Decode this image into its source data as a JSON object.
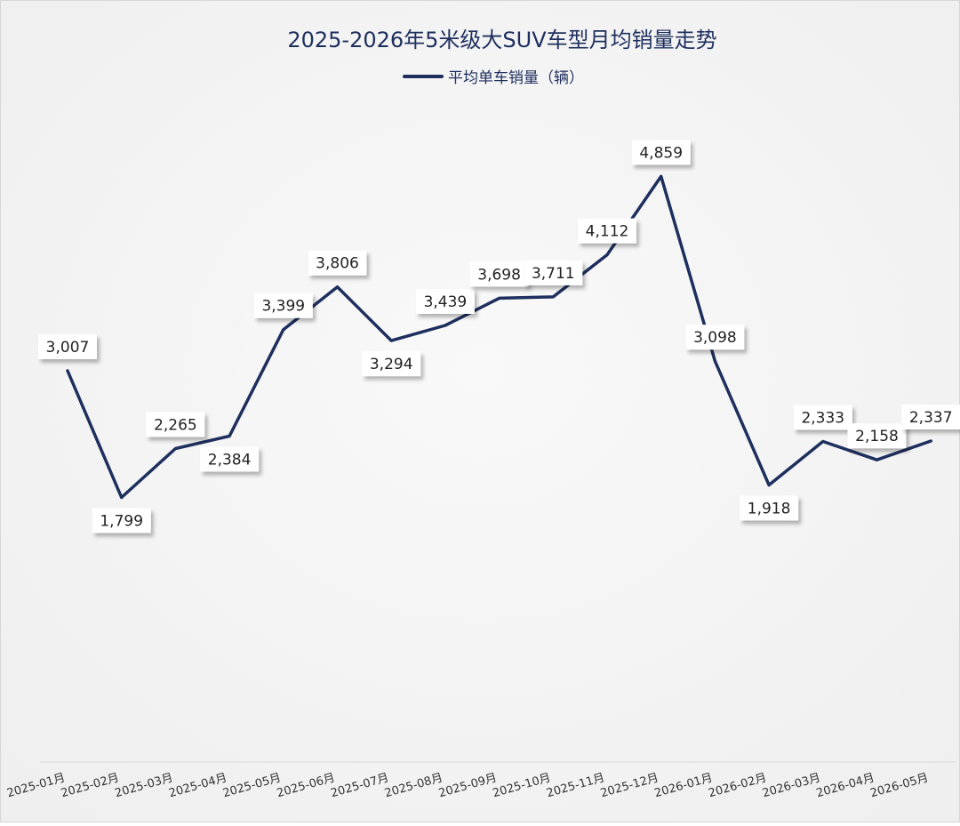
{
  "chart_data": {
    "type": "line",
    "title": "2025-2026年5米级大SUV车型月均销量走势",
    "legend": {
      "position": "top-center"
    },
    "grid": false,
    "categories": [
      "2025-01月",
      "2025-02月",
      "2025-03月",
      "2025-04月",
      "2025-05月",
      "2025-06月",
      "2025-07月",
      "2025-08月",
      "2025-09月",
      "2025-10月",
      "2025-11月",
      "2025-12月",
      "2026-01月",
      "2026-02月",
      "2026-03月",
      "2026-04月",
      "2026-05月"
    ],
    "series": [
      {
        "name": "平均单车销量（辆）",
        "color": "#1e2f5e",
        "values": [
          3007,
          1799,
          2265,
          2384,
          3399,
          3806,
          3294,
          3439,
          3698,
          3711,
          4112,
          4859,
          3098,
          1918,
          2333,
          2158,
          2337
        ],
        "labels": [
          "3,007",
          "1,799",
          "2,265",
          "2,384",
          "3,399",
          "3,806",
          "3,294",
          "3,439",
          "3,698",
          "3,711",
          "4,112",
          "4,859",
          "3,098",
          "1,918",
          "2,333",
          "2,158",
          "2,337"
        ]
      }
    ],
    "colors": {
      "background": "#f4f4f4",
      "title": "#1e2f5e",
      "axis_text": "#333333",
      "label_text": "#222222"
    }
  }
}
